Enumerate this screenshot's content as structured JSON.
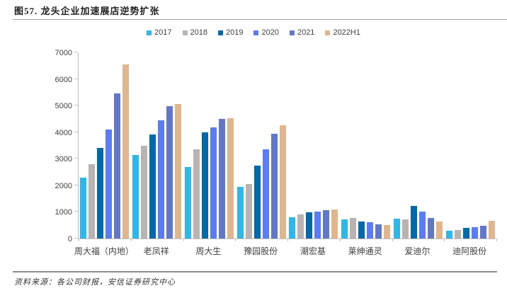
{
  "header": {
    "title": "图57. 龙头企业加速展店逆势扩张"
  },
  "footer": {
    "source": "资料来源：各公司财报，安信证券研究中心"
  },
  "chart_data": {
    "type": "bar",
    "title": "图57. 龙头企业加速展店逆势扩张",
    "xlabel": "",
    "ylabel": "",
    "ylim": [
      0,
      7000
    ],
    "ytick_interval": 1000,
    "grid": false,
    "legend_position": "top-center",
    "categories": [
      "周大福（内地）",
      "老凤祥",
      "周大生",
      "豫园股份",
      "潮宏基",
      "莱绅通灵",
      "爱迪尔",
      "迪阿股份"
    ],
    "series": [
      {
        "name": "2017",
        "color": "#2FB7E9",
        "values": [
          2300,
          3150,
          2700,
          1950,
          800,
          730,
          750,
          285
        ]
      },
      {
        "name": "2018",
        "color": "#B9B3B3",
        "values": [
          2800,
          3500,
          3350,
          2050,
          900,
          760,
          730,
          325
        ]
      },
      {
        "name": "2019",
        "color": "#0069AA",
        "values": [
          3400,
          3900,
          4000,
          2750,
          990,
          650,
          1230,
          400
        ]
      },
      {
        "name": "2020",
        "color": "#5B7CF7",
        "values": [
          4100,
          4450,
          4180,
          3350,
          1000,
          600,
          1000,
          420
        ]
      },
      {
        "name": "2021",
        "color": "#6377C9",
        "values": [
          5450,
          4970,
          4500,
          3950,
          1070,
          540,
          780,
          490
        ]
      },
      {
        "name": "2022H1",
        "color": "#DFB68D",
        "values": [
          6550,
          5060,
          4520,
          4250,
          1100,
          510,
          640,
          660
        ]
      }
    ]
  }
}
